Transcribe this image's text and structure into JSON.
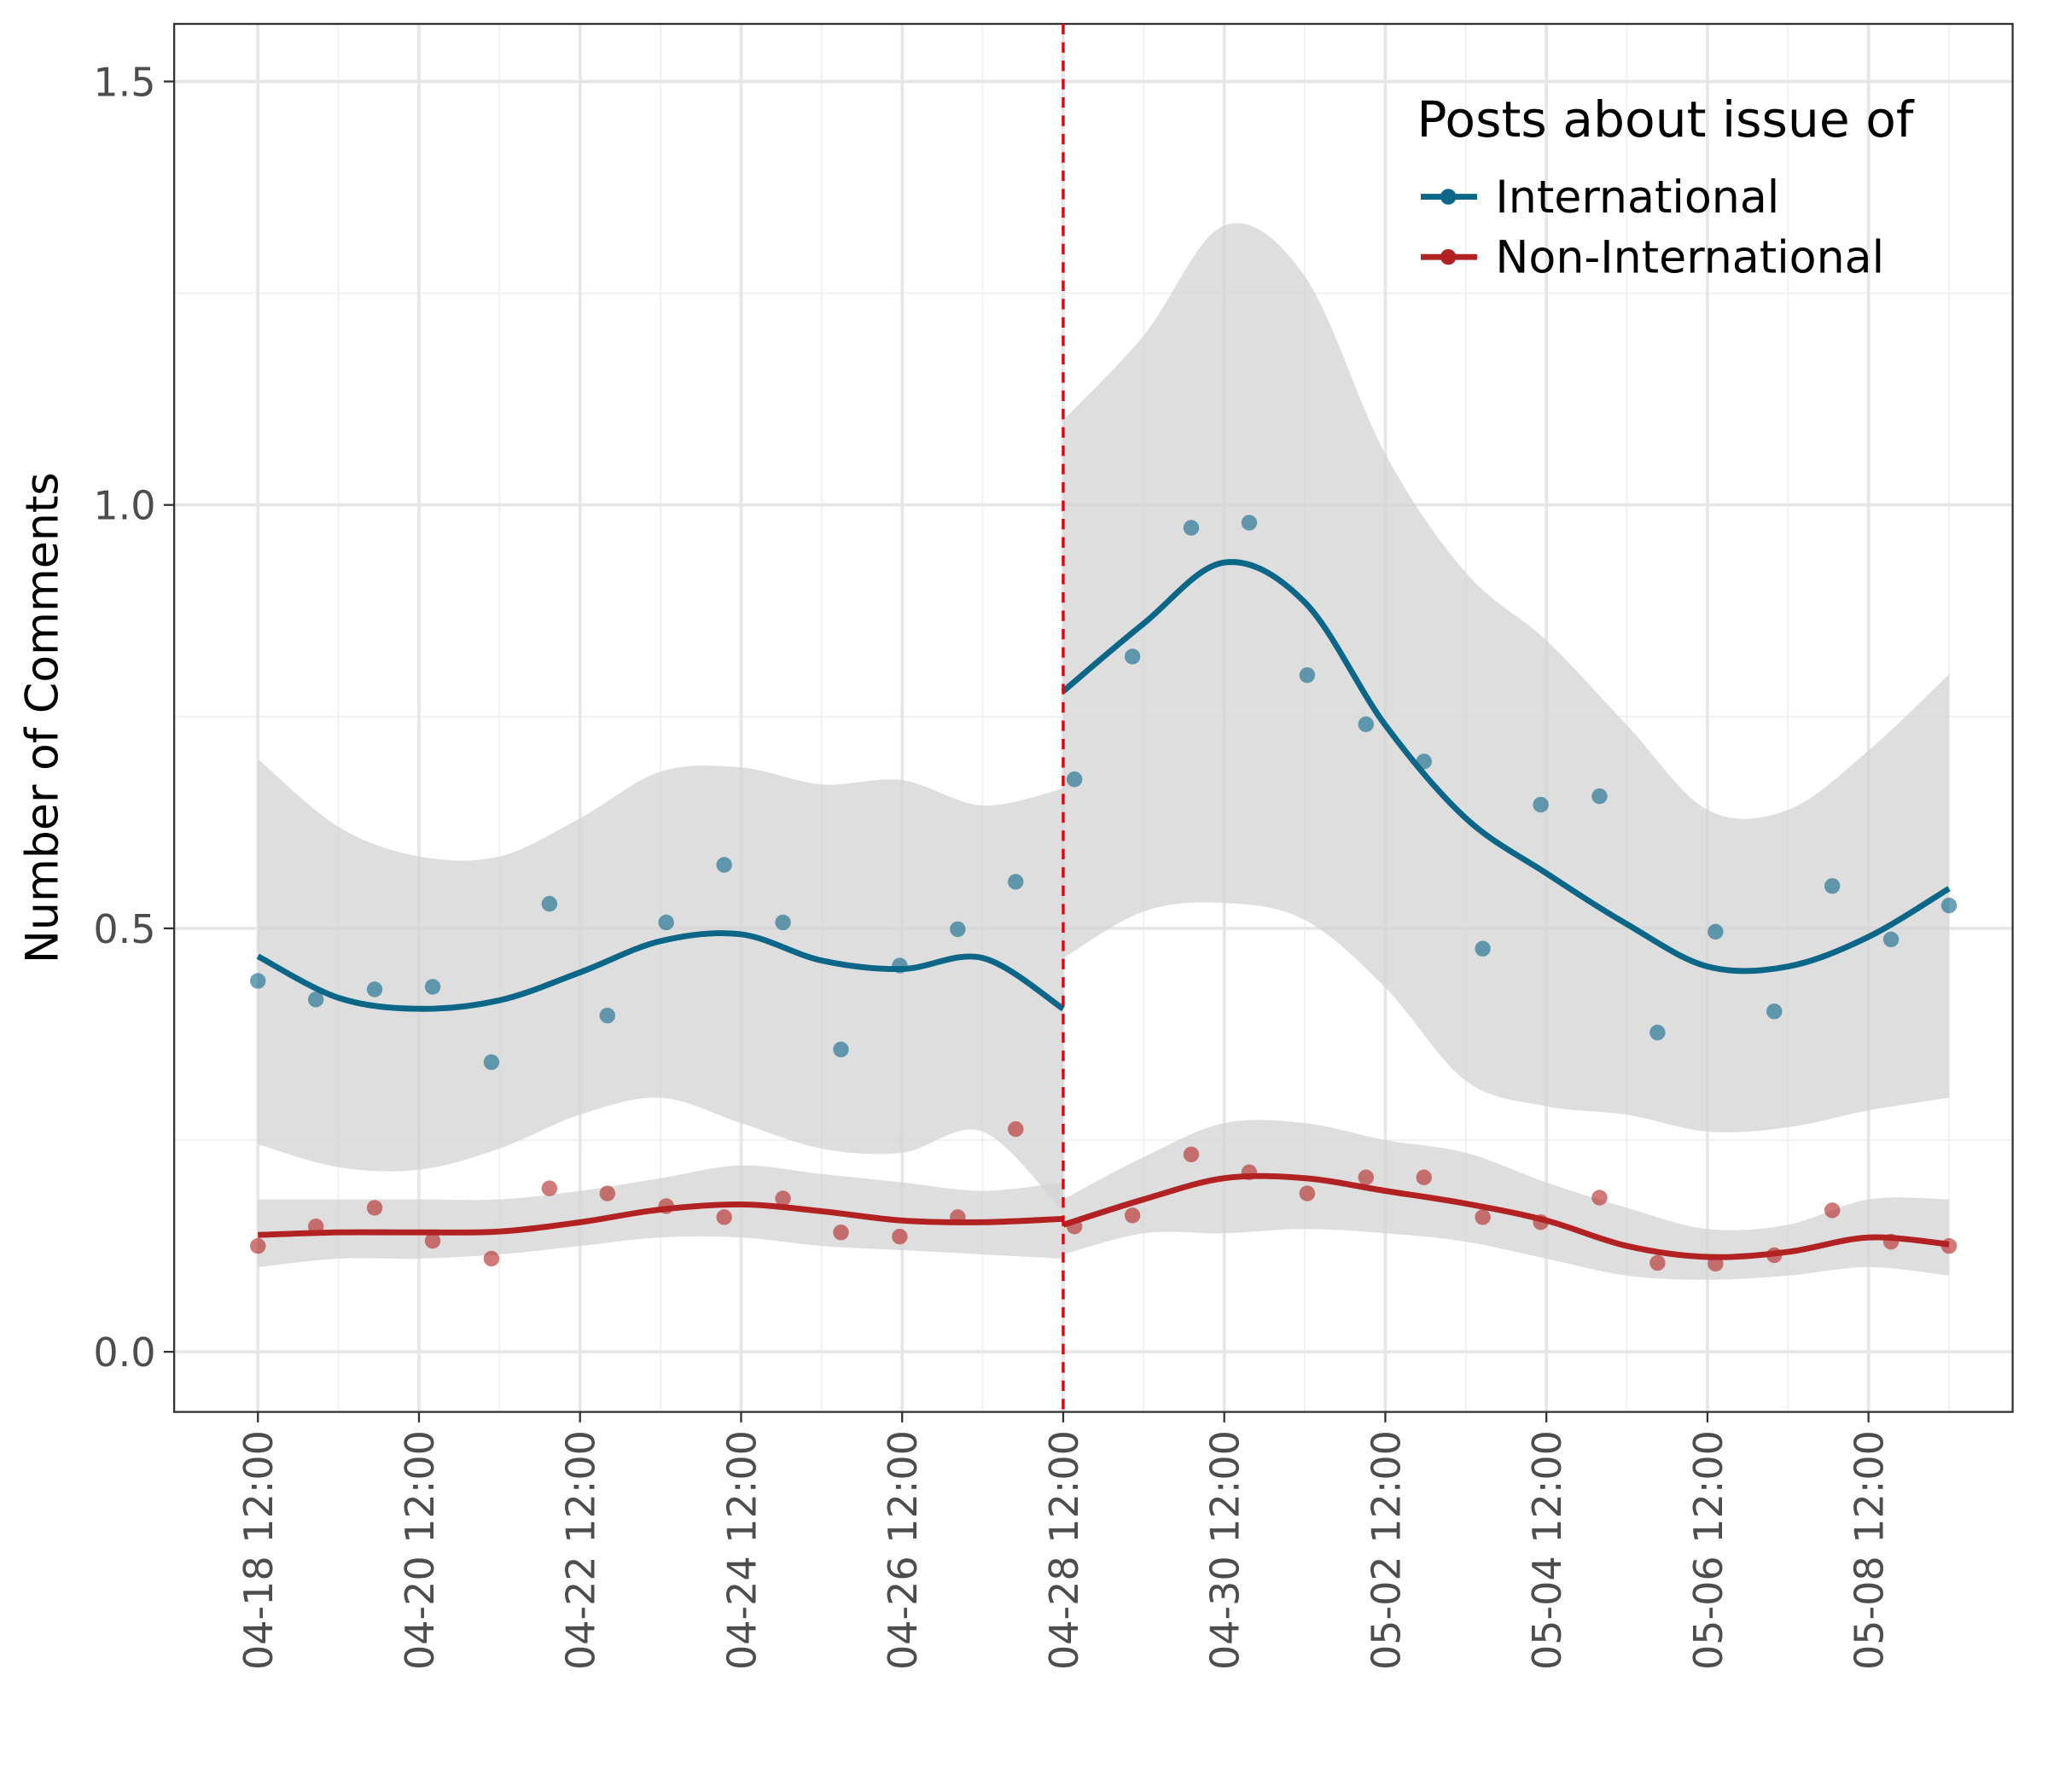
{
  "chart_data": {
    "type": "scatter",
    "y_label": "Number of Comments",
    "legend_title": "Posts about issue of",
    "legend_position": "top-right",
    "grid": true,
    "xlim": [
      -1.04,
      21.79
    ],
    "ylim": [
      -0.071,
      1.568
    ],
    "xticks": [
      {
        "value": 0,
        "label": "04-18 12:00"
      },
      {
        "value": 2,
        "label": "04-20 12:00"
      },
      {
        "value": 4,
        "label": "04-22 12:00"
      },
      {
        "value": 6,
        "label": "04-24 12:00"
      },
      {
        "value": 8,
        "label": "04-26 12:00"
      },
      {
        "value": 10,
        "label": "04-28 12:00"
      },
      {
        "value": 12,
        "label": "04-30 12:00"
      },
      {
        "value": 14,
        "label": "05-02 12:00"
      },
      {
        "value": 16,
        "label": "05-04 12:00"
      },
      {
        "value": 18,
        "label": "05-06 12:00"
      },
      {
        "value": 20,
        "label": "05-08 12:00"
      }
    ],
    "xminor": [
      1,
      3,
      5,
      7,
      9,
      11,
      13,
      15,
      17,
      19,
      21
    ],
    "yticks": [
      {
        "value": 0,
        "label": "0.0"
      },
      0.5,
      {
        "value": 1,
        "label": "1.0"
      },
      1.5
    ],
    "yminor": [
      0.25,
      0.75,
      1.25
    ],
    "vline": {
      "x": 10,
      "color": "#e8000b"
    },
    "ribbon_color": "#d3d3d3",
    "x": [
      0,
      0.72,
      1.45,
      2.17,
      2.9,
      3.62,
      4.34,
      5.07,
      5.79,
      6.52,
      7.24,
      7.97,
      8.69,
      9.41,
      10.14,
      10.86,
      11.59,
      12.31,
      13.03,
      13.76,
      14.48,
      15.21,
      15.93,
      16.66,
      17.38,
      18.1,
      18.83,
      19.55,
      20.28,
      21
    ],
    "series": [
      {
        "name": "International",
        "color": "#0b6688",
        "values": [
          0.438,
          0.416,
          0.428,
          0.431,
          0.342,
          0.529,
          0.397,
          0.507,
          0.575,
          0.507,
          0.357,
          0.456,
          0.499,
          0.555,
          0.676,
          0.821,
          0.973,
          0.979,
          0.799,
          0.741,
          0.697,
          0.476,
          0.646,
          0.656,
          0.377,
          0.496,
          0.402,
          0.55,
          0.487,
          0.527
        ],
        "fit": {
          "x": [
            0,
            1,
            2,
            3,
            4,
            5,
            6,
            7,
            8,
            9,
            10,
            null,
            10,
            11,
            12,
            13,
            14,
            15,
            16,
            17,
            18,
            19,
            20,
            21
          ],
          "values": [
            0.467,
            0.418,
            0.405,
            0.415,
            0.448,
            0.485,
            0.493,
            0.462,
            0.452,
            0.465,
            0.405,
            null,
            0.78,
            0.86,
            0.932,
            0.885,
            0.74,
            0.63,
            0.565,
            0.505,
            0.455,
            0.455,
            0.49,
            0.547
          ],
          "lower": [
            0.245,
            0.218,
            0.215,
            0.24,
            0.28,
            0.3,
            0.27,
            0.24,
            0.235,
            0.26,
            0.165,
            null,
            0.465,
            0.52,
            0.53,
            0.51,
            0.43,
            0.32,
            0.29,
            0.28,
            0.26,
            0.265,
            0.285,
            0.3
          ],
          "upper": [
            0.7,
            0.62,
            0.585,
            0.585,
            0.63,
            0.685,
            0.69,
            0.67,
            0.675,
            0.645,
            0.665,
            null,
            1.1,
            1.2,
            1.33,
            1.27,
            1.06,
            0.92,
            0.84,
            0.74,
            0.64,
            0.64,
            0.71,
            0.8
          ]
        }
      },
      {
        "name": "Non-International",
        "color": "#b22222",
        "values": [
          0.125,
          0.148,
          0.17,
          0.131,
          0.11,
          0.193,
          0.187,
          0.172,
          0.159,
          0.181,
          0.141,
          0.136,
          0.159,
          0.263,
          0.148,
          0.161,
          0.233,
          0.212,
          0.187,
          0.206,
          0.206,
          0.159,
          0.153,
          0.182,
          0.105,
          0.104,
          0.114,
          0.167,
          0.13,
          0.125
        ],
        "fit": {
          "x": [
            0,
            1,
            2,
            3,
            4,
            5,
            6,
            7,
            8,
            9,
            10,
            null,
            10,
            11,
            12,
            13,
            14,
            15,
            16,
            17,
            18,
            19,
            20,
            21
          ],
          "values": [
            0.138,
            0.141,
            0.141,
            0.142,
            0.153,
            0.168,
            0.174,
            0.166,
            0.155,
            0.153,
            0.157,
            null,
            0.15,
            0.18,
            0.205,
            0.205,
            0.19,
            0.175,
            0.155,
            0.125,
            0.112,
            0.118,
            0.135,
            0.127
          ],
          "lower": [
            0.1,
            0.11,
            0.11,
            0.115,
            0.125,
            0.135,
            0.135,
            0.125,
            0.12,
            0.115,
            0.11,
            null,
            0.115,
            0.14,
            0.14,
            0.145,
            0.14,
            0.13,
            0.11,
            0.09,
            0.085,
            0.09,
            0.1,
            0.09
          ],
          "upper": [
            0.18,
            0.18,
            0.18,
            0.18,
            0.19,
            0.205,
            0.22,
            0.21,
            0.2,
            0.19,
            0.2,
            null,
            0.18,
            0.23,
            0.27,
            0.27,
            0.25,
            0.235,
            0.2,
            0.17,
            0.145,
            0.15,
            0.18,
            0.18
          ]
        }
      }
    ]
  }
}
